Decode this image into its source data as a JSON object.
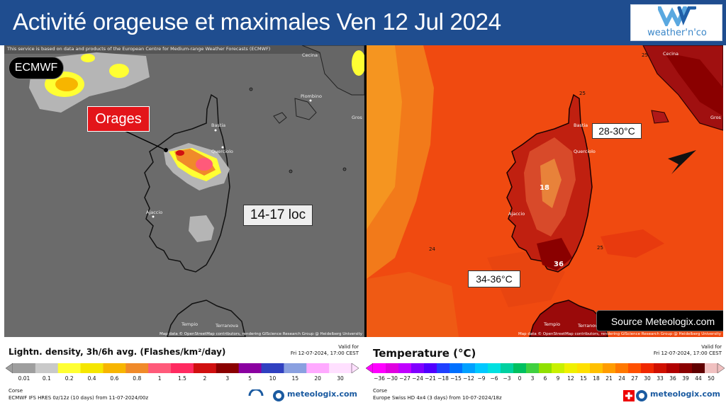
{
  "header": {
    "title": "Activité orageuse et maximales Ven 12 Jul 2024",
    "logo_text": "weather'n'co"
  },
  "left_map": {
    "credit": "This service is based on data and products of the European Centre for Medium-range Weather Forecasts (ECMWF)",
    "badge": "ECMWF",
    "orages_label": "Orages",
    "loc_label": "14-17 loc",
    "attribution": "Map data © OpenStreetMap contributors, rendering GIScience Research Group @ Heidelberg University",
    "places": {
      "bastia": "Bastia",
      "querciolo": "Querciolo",
      "ajaccio": "Ajaccio",
      "piombino": "Piombino",
      "cecina": "Cecina",
      "gros": "Gros",
      "tempio": "Tempio",
      "terranova": "Terranova"
    }
  },
  "right_map": {
    "label_2830": "28-30°C",
    "label_3436": "34-36°C",
    "source": "Source Meteologix.com",
    "attribution": "Map data © OpenStreetMap contributors, rendering GIScience Research Group @ Heidelberg University",
    "contour_labels": {
      "c25a": "25",
      "c25b": "25",
      "c25c": "25",
      "c24": "24",
      "c18": "18",
      "c36": "36"
    },
    "places": {
      "bastia": "Bastia",
      "querciolo": "Querciolo",
      "ajaccio": "Ajaccio",
      "cecina": "Cecina",
      "gros": "Gros",
      "tempio": "Tempio",
      "terranova": "Terranova"
    }
  },
  "legend_left": {
    "title": "Lightn. density, 3h/6h avg. (Flashes/km²/day)",
    "valid_label": "Valid for",
    "valid_time": "Fri 12-07-2024, 17:00 CEST",
    "ticks": [
      "0.01",
      "0.1",
      "0.2",
      "0.4",
      "0.6",
      "0.8",
      "1",
      "1.5",
      "2",
      "3",
      "5",
      "10",
      "15",
      "20",
      "30"
    ],
    "colors": [
      "#9e9e9e",
      "#c9c9c9",
      "#ffff33",
      "#f5e600",
      "#f7b500",
      "#f08a2a",
      "#ff5a7a",
      "#ff2a60",
      "#d01010",
      "#8a0000",
      "#8a00a0",
      "#3040c0",
      "#8aa0e0",
      "#ffaaff",
      "#ffe0ff"
    ],
    "region": "Corse",
    "model": "ECMWF IFS HRES 0z/12z (10 days) from  11-07-2024/00z",
    "brand": "meteologix.com",
    "ecmwf_small": "ECMWF"
  },
  "legend_right": {
    "title": "Temperature (°C)",
    "valid_label": "Valid for",
    "valid_time": "Fri 12-07-2024, 17:00 CEST",
    "ticks": [
      "−36",
      "−30",
      "−27",
      "−24",
      "−21",
      "−18",
      "−15",
      "−12",
      "−9",
      "−6",
      "−3",
      "0",
      "3",
      "6",
      "9",
      "12",
      "15",
      "18",
      "21",
      "24",
      "27",
      "30",
      "33",
      "36",
      "39",
      "44",
      "50"
    ],
    "colors": [
      "#ff00ff",
      "#e000e0",
      "#c000ff",
      "#8000ff",
      "#5000ff",
      "#2040ff",
      "#0070ff",
      "#00a0ff",
      "#00c8ff",
      "#00e0e0",
      "#00d0a0",
      "#00c060",
      "#40d040",
      "#90e000",
      "#c8f000",
      "#f0f000",
      "#ffe000",
      "#ffc000",
      "#ff9c00",
      "#ff7800",
      "#ff5000",
      "#f02800",
      "#d01000",
      "#b00000",
      "#8a0000",
      "#600000",
      "#f0c0c0"
    ],
    "region": "Corse",
    "model": "Europe Swiss HD 4x4 (3 days) from  10-07-2024/18z",
    "brand": "meteologix.com"
  }
}
